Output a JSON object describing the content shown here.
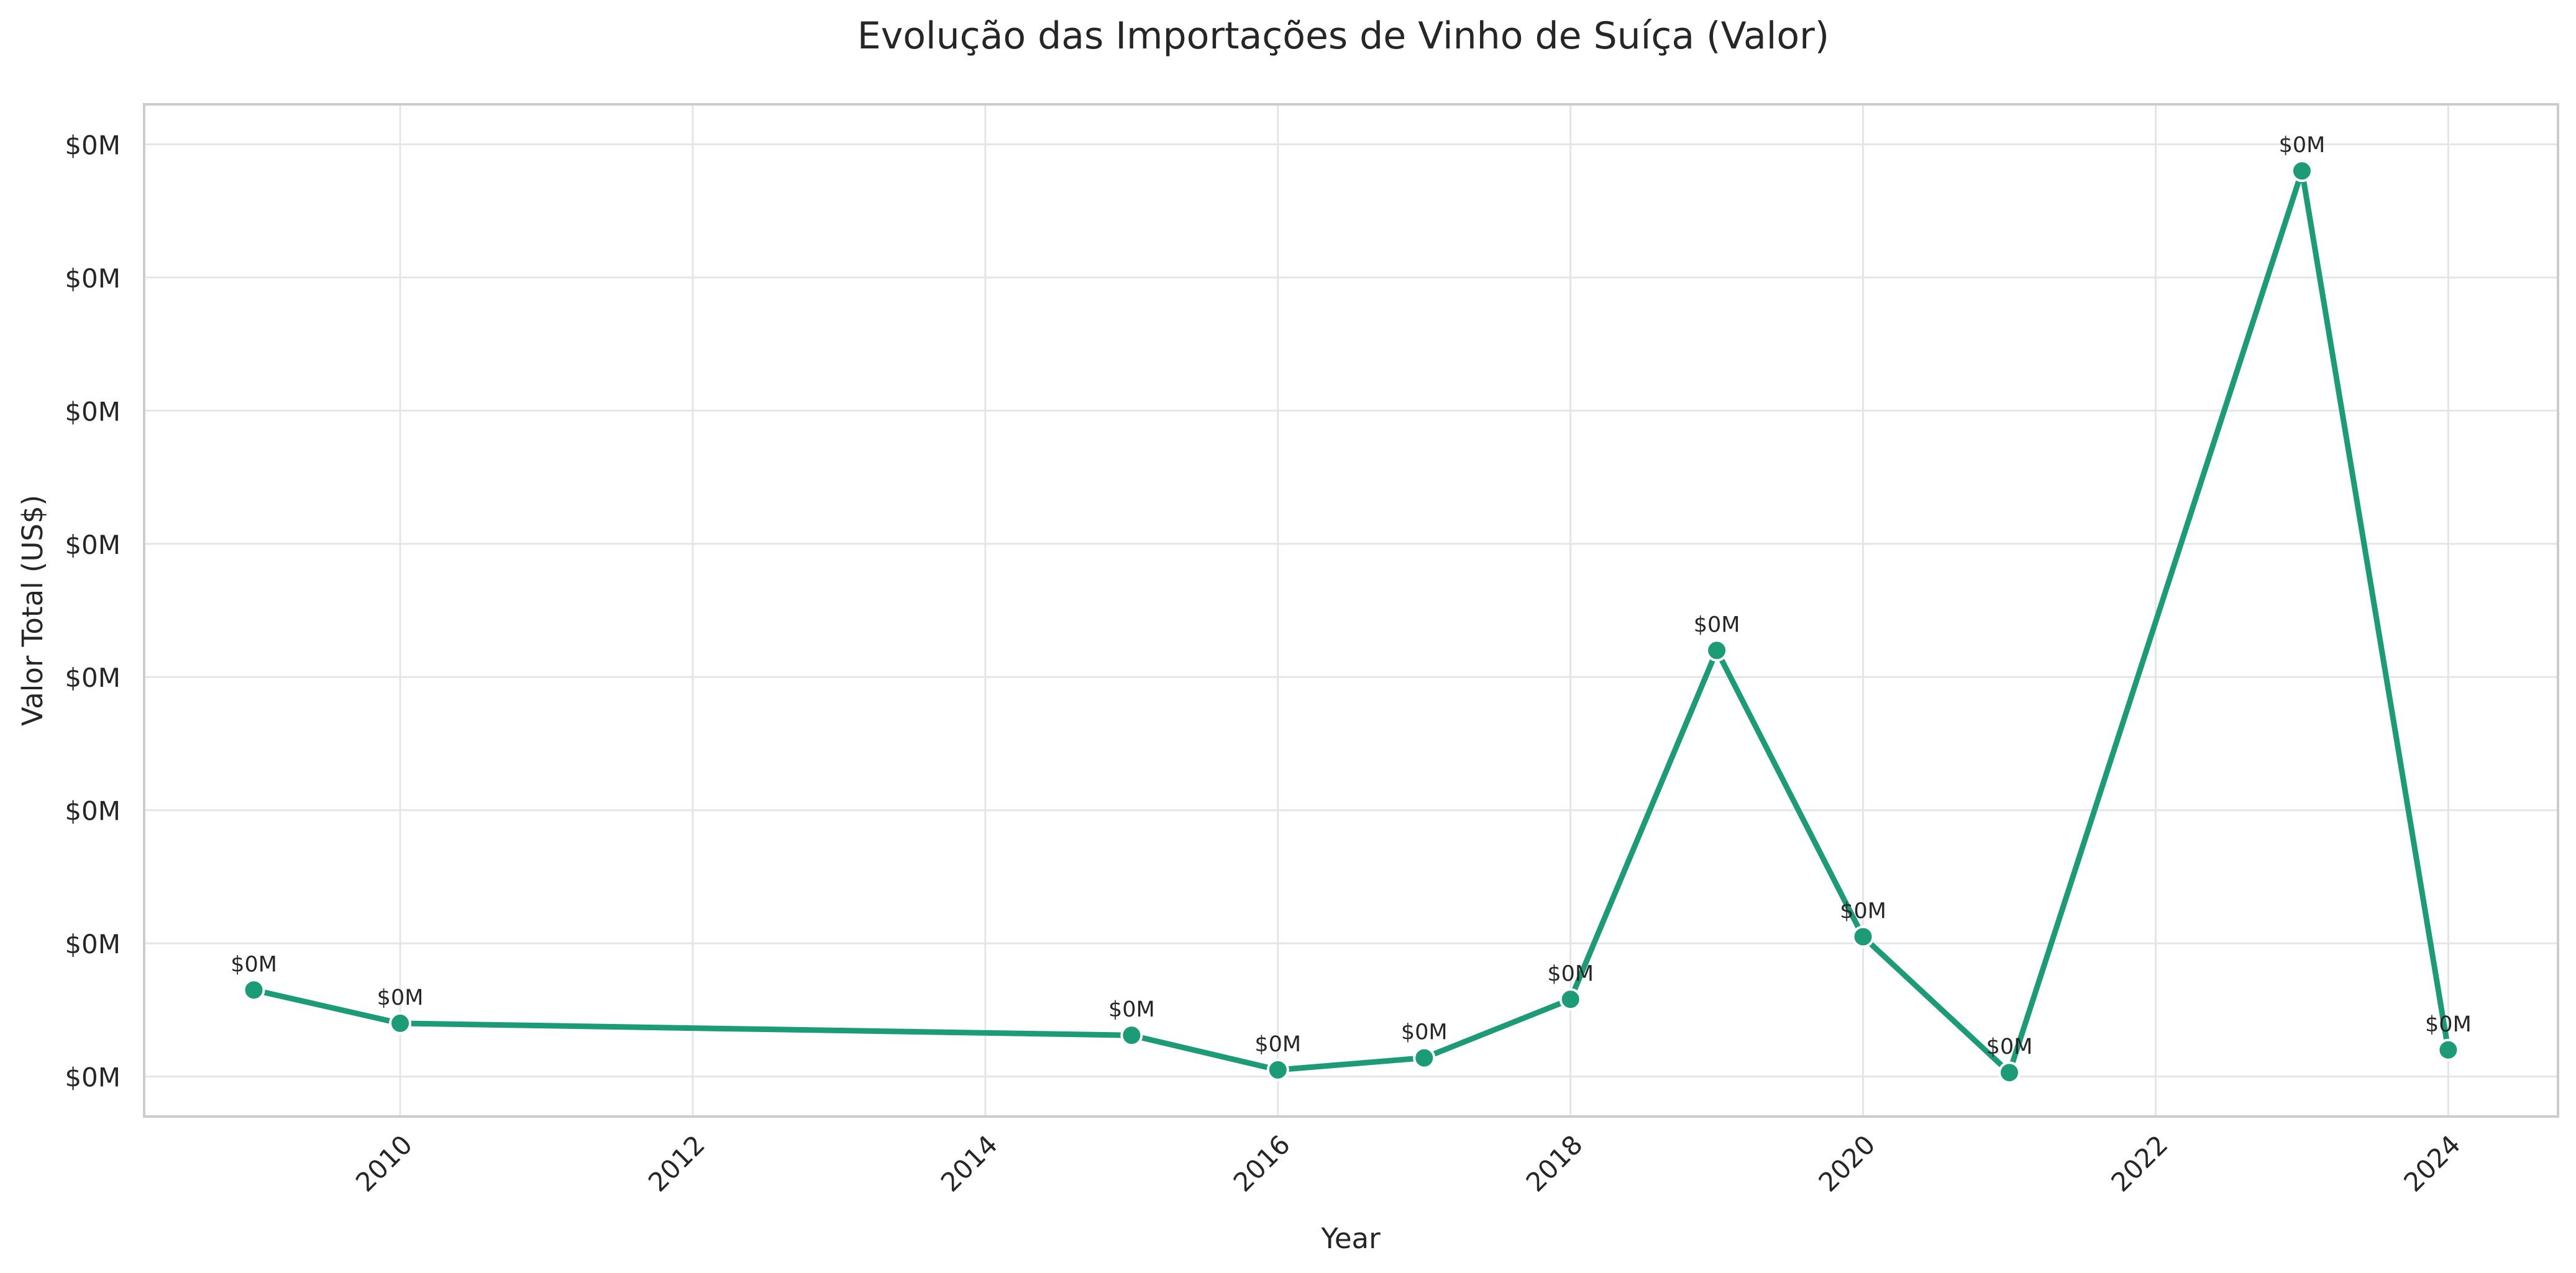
{
  "chart_data": {
    "type": "line",
    "title": "Evolução das Importações de Vinho de Suíça (Valor)",
    "xlabel": "Year",
    "ylabel": "Valor Total (US$)",
    "x_ticks": [
      "2010",
      "2012",
      "2014",
      "2016",
      "2018",
      "2020",
      "2022",
      "2024"
    ],
    "y_ticks": [
      "$0M",
      "$0M",
      "$0M",
      "$0M",
      "$0M",
      "$0M",
      "$0M",
      "$0M"
    ],
    "xlim": [
      2008.25,
      2024.75
    ],
    "ylim": [
      -0.3,
      7.3
    ],
    "grid": true,
    "legend": "none",
    "colors": {
      "line": "#1b9c77",
      "marker_edge": "#ffffff",
      "grid": "#e5e5e5",
      "spine": "#cccccc"
    },
    "series": [
      {
        "x": [
          2009,
          2010,
          2015,
          2016,
          2017,
          2018,
          2019,
          2020,
          2021,
          2023,
          2024
        ],
        "y": [
          0.65,
          0.4,
          0.31,
          0.05,
          0.14,
          0.58,
          3.2,
          1.05,
          0.03,
          6.8,
          0.2
        ],
        "labels": [
          "$0M",
          "$0M",
          "$0M",
          "$0M",
          "$0M",
          "$0M",
          "$0M",
          "$0M",
          "$0M",
          "$0M",
          "$0M"
        ]
      }
    ]
  }
}
